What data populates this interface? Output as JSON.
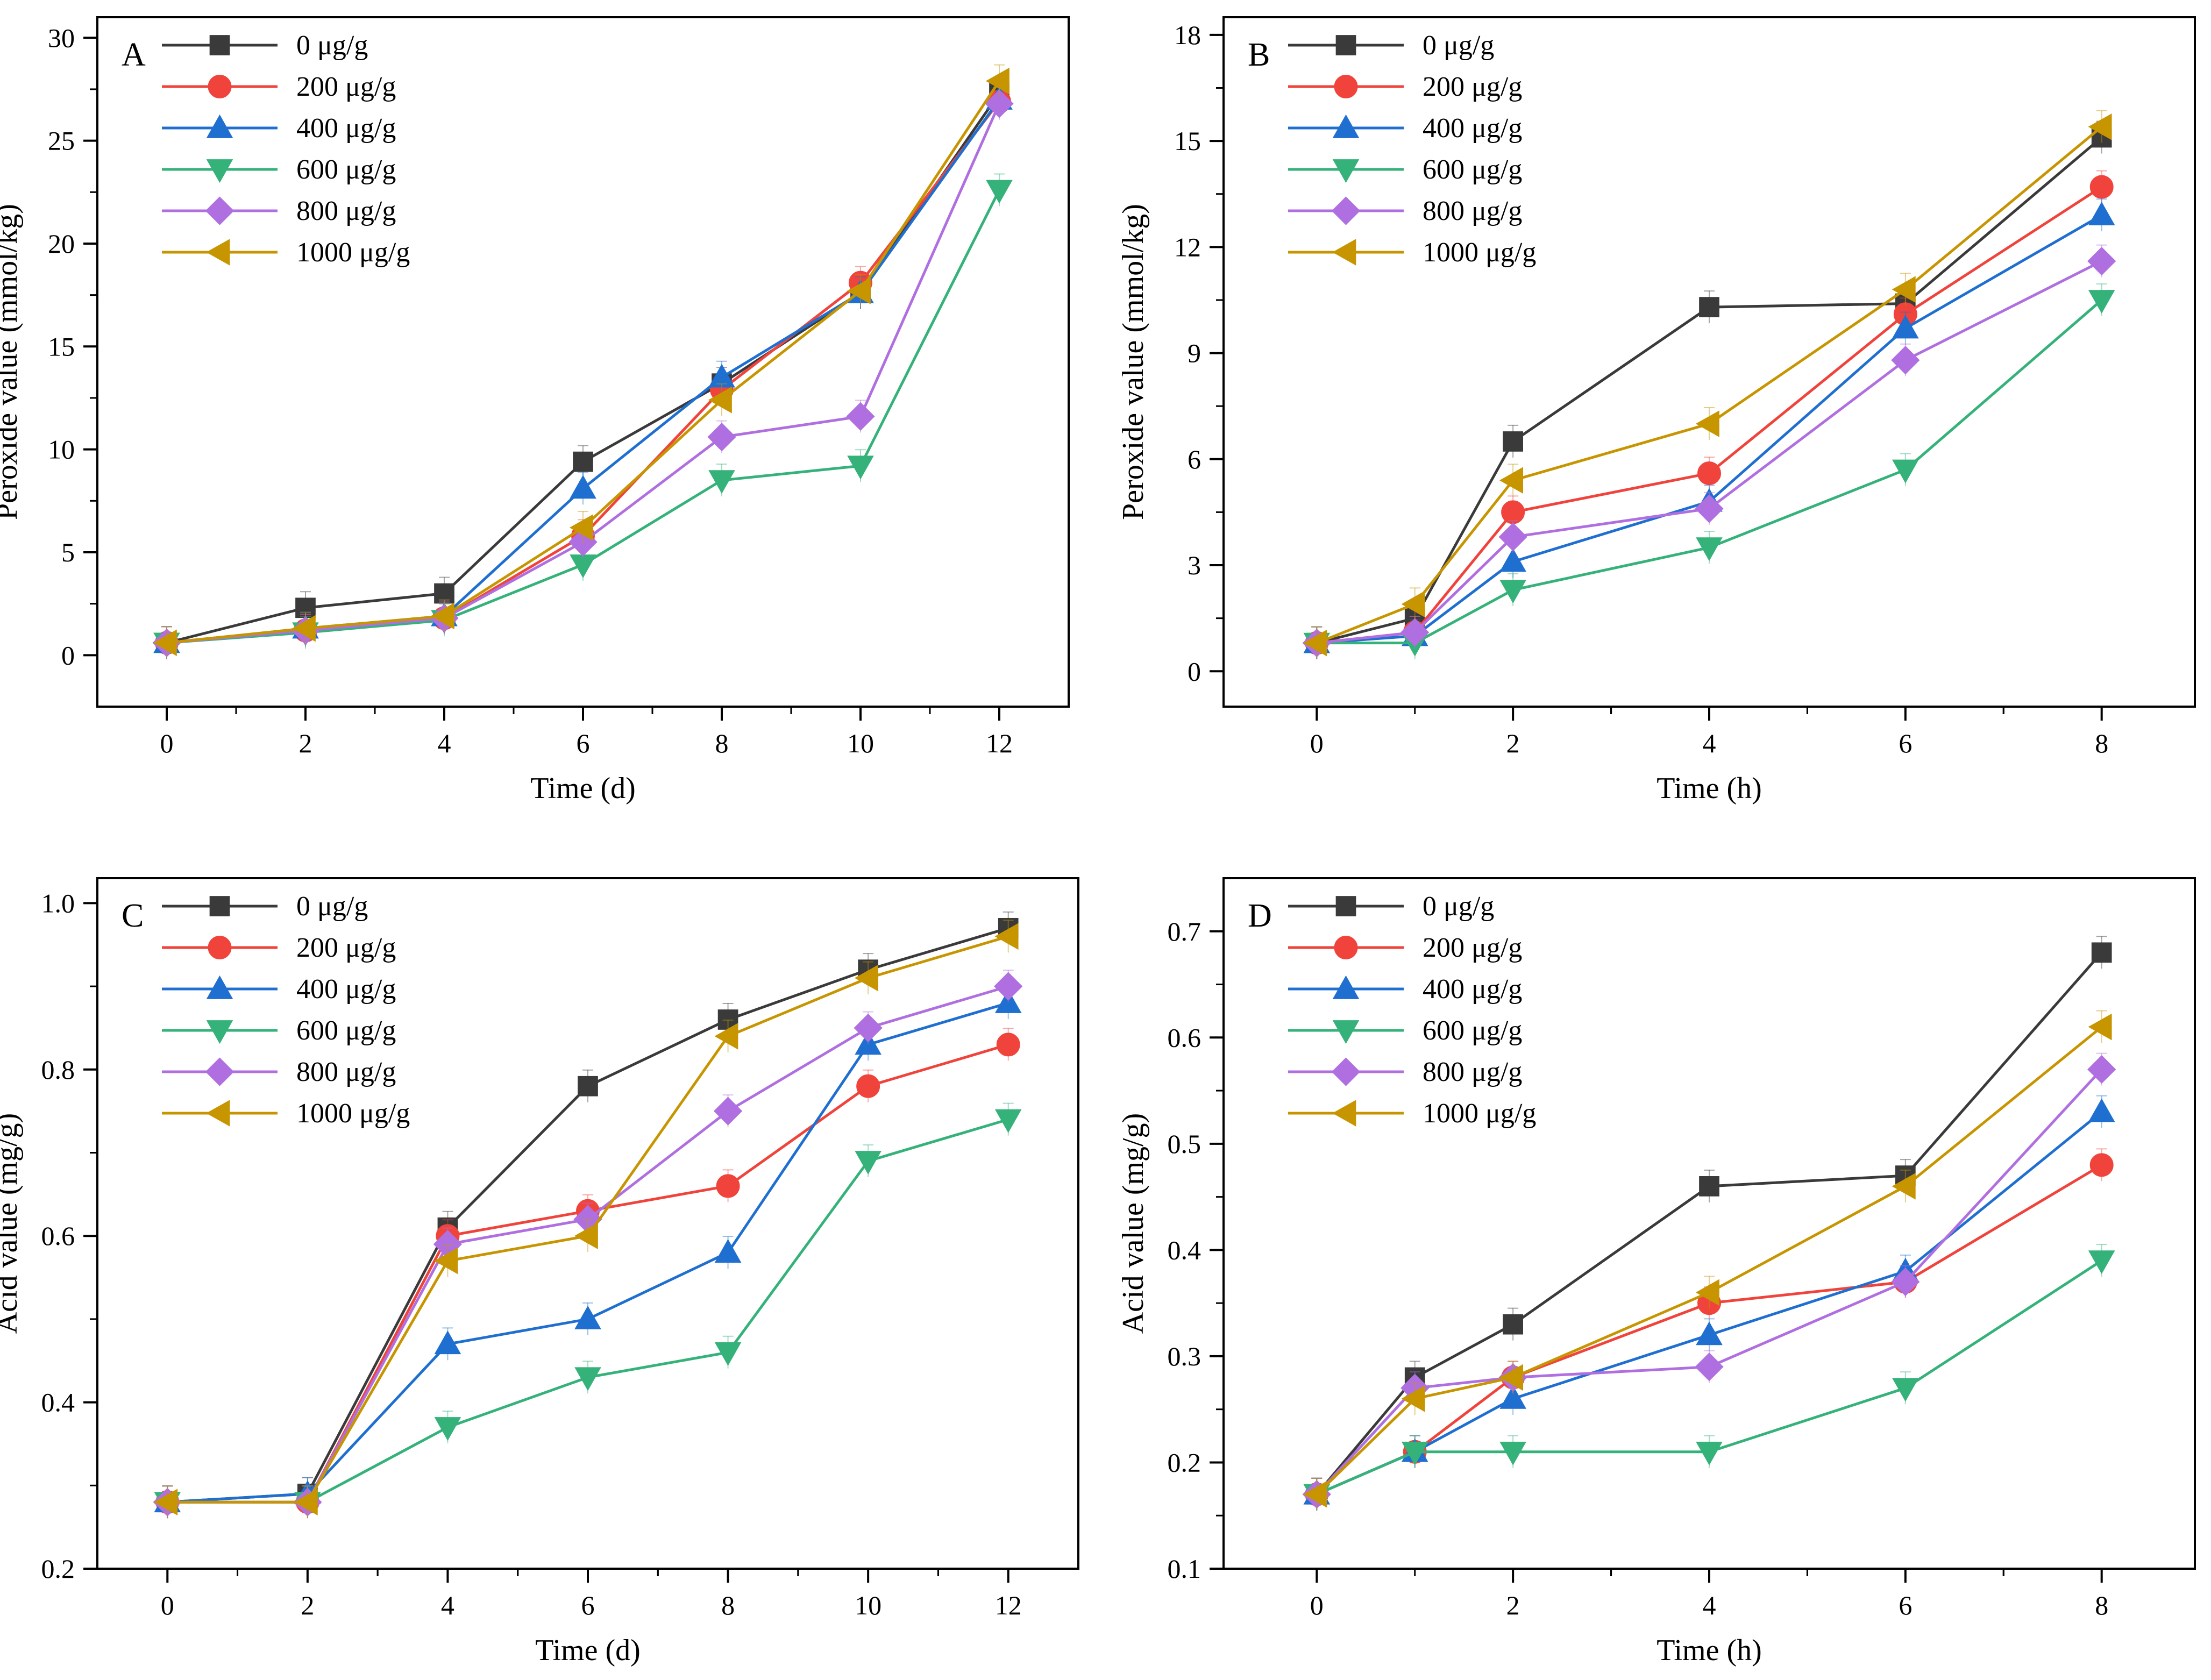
{
  "chart_data": [
    {
      "panel_label": "A",
      "type": "line",
      "xlabel": "Time (d)",
      "ylabel": "Peroxide value (mmol/kg)",
      "xlim": [
        -1,
        13
      ],
      "ylim": [
        -2.5,
        31
      ],
      "x_ticks": [
        "0",
        "2",
        "4",
        "6",
        "8",
        "10",
        "12"
      ],
      "y_ticks": [
        "0",
        "5",
        "10",
        "15",
        "20",
        "25",
        "30"
      ],
      "x": [
        0,
        2,
        4,
        6,
        8,
        10,
        12
      ],
      "legend_position": "top-left",
      "series": [
        {
          "name": "0 μg/g",
          "values": [
            0.6,
            2.3,
            3.0,
            9.4,
            13.2,
            17.6,
            27.3
          ]
        },
        {
          "name": "200 μg/g",
          "values": [
            0.6,
            1.2,
            1.8,
            5.8,
            12.9,
            18.1,
            26.9
          ]
        },
        {
          "name": "400 μg/g",
          "values": [
            0.6,
            1.3,
            1.9,
            8.1,
            13.5,
            17.6,
            27.0
          ]
        },
        {
          "name": "600 μg/g",
          "values": [
            0.6,
            1.1,
            1.7,
            4.4,
            8.5,
            9.2,
            22.6
          ]
        },
        {
          "name": "800 μg/g",
          "values": [
            0.6,
            1.2,
            1.8,
            5.5,
            10.6,
            11.6,
            26.8
          ]
        },
        {
          "name": "1000 μg/g",
          "values": [
            0.6,
            1.3,
            1.9,
            6.2,
            12.4,
            17.7,
            27.9
          ]
        }
      ]
    },
    {
      "panel_label": "B",
      "type": "line",
      "xlabel": "Time (h)",
      "ylabel": "Peroxide value (mmol/kg)",
      "xlim": [
        -0.95,
        8.95
      ],
      "ylim": [
        -1,
        18.5
      ],
      "x_ticks": [
        "0",
        "2",
        "4",
        "6",
        "8"
      ],
      "y_ticks": [
        "0",
        "3",
        "6",
        "9",
        "12",
        "15",
        "18"
      ],
      "x": [
        0,
        1,
        2,
        4,
        6,
        8
      ],
      "legend_position": "top-left",
      "series": [
        {
          "name": "0 μg/g",
          "values": [
            0.8,
            1.5,
            6.5,
            10.3,
            10.4,
            15.1
          ]
        },
        {
          "name": "200 μg/g",
          "values": [
            0.8,
            1.1,
            4.5,
            5.6,
            10.1,
            13.7
          ]
        },
        {
          "name": "400 μg/g",
          "values": [
            0.8,
            1.0,
            3.1,
            4.8,
            9.7,
            12.9
          ]
        },
        {
          "name": "600 μg/g",
          "values": [
            0.8,
            0.8,
            2.3,
            3.5,
            5.7,
            10.5
          ]
        },
        {
          "name": "800 μg/g",
          "values": [
            0.8,
            1.1,
            3.8,
            4.6,
            8.8,
            11.6
          ]
        },
        {
          "name": "1000 μg/g",
          "values": [
            0.8,
            1.9,
            5.4,
            7.0,
            10.8,
            15.4
          ]
        }
      ]
    },
    {
      "panel_label": "C",
      "type": "line",
      "xlabel": "Time (d)",
      "ylabel": "Acid value (mg/g)",
      "xlim": [
        -1,
        13
      ],
      "ylim": [
        0.2,
        1.03
      ],
      "x_ticks": [
        "0",
        "2",
        "4",
        "6",
        "8",
        "10",
        "12"
      ],
      "y_ticks": [
        "0.2",
        "0.4",
        "0.6",
        "0.8",
        "1.0"
      ],
      "x": [
        0,
        2,
        4,
        6,
        8,
        10,
        12
      ],
      "legend_position": "top-left",
      "series": [
        {
          "name": "0 μg/g",
          "values": [
            0.28,
            0.29,
            0.61,
            0.78,
            0.86,
            0.92,
            0.97
          ]
        },
        {
          "name": "200 μg/g",
          "values": [
            0.28,
            0.28,
            0.6,
            0.63,
            0.66,
            0.78,
            0.83
          ]
        },
        {
          "name": "400 μg/g",
          "values": [
            0.28,
            0.29,
            0.47,
            0.5,
            0.58,
            0.83,
            0.88
          ]
        },
        {
          "name": "600 μg/g",
          "values": [
            0.28,
            0.28,
            0.37,
            0.43,
            0.46,
            0.69,
            0.74
          ]
        },
        {
          "name": "800 μg/g",
          "values": [
            0.28,
            0.28,
            0.59,
            0.62,
            0.75,
            0.85,
            0.9
          ]
        },
        {
          "name": "1000 μg/g",
          "values": [
            0.28,
            0.28,
            0.57,
            0.6,
            0.84,
            0.91,
            0.96
          ]
        }
      ]
    },
    {
      "panel_label": "D",
      "type": "line",
      "xlabel": "Time (h)",
      "ylabel": "Acid value (mg/g)",
      "xlim": [
        -0.95,
        8.95
      ],
      "ylim": [
        0.1,
        0.75
      ],
      "x_ticks": [
        "0",
        "2",
        "4",
        "6",
        "8"
      ],
      "y_ticks": [
        "0.1",
        "0.2",
        "0.3",
        "0.4",
        "0.5",
        "0.6",
        "0.7"
      ],
      "x": [
        0,
        1,
        2,
        4,
        6,
        8
      ],
      "legend_position": "top-left",
      "series": [
        {
          "name": "0 μg/g",
          "values": [
            0.17,
            0.28,
            0.33,
            0.46,
            0.47,
            0.68
          ]
        },
        {
          "name": "200 μg/g",
          "values": [
            0.17,
            0.21,
            0.28,
            0.35,
            0.37,
            0.48
          ]
        },
        {
          "name": "400 μg/g",
          "values": [
            0.17,
            0.21,
            0.26,
            0.32,
            0.38,
            0.53
          ]
        },
        {
          "name": "600 μg/g",
          "values": [
            0.17,
            0.21,
            0.21,
            0.21,
            0.27,
            0.39
          ]
        },
        {
          "name": "800 μg/g",
          "values": [
            0.17,
            0.27,
            0.28,
            0.29,
            0.37,
            0.57
          ]
        },
        {
          "name": "1000 μg/g",
          "values": [
            0.17,
            0.26,
            0.28,
            0.36,
            0.46,
            0.61
          ]
        }
      ]
    }
  ],
  "styles": {
    "series_colors": [
      "#3a3a3a",
      "#f0433b",
      "#1f6fd1",
      "#35b27a",
      "#b06fe0",
      "#c79500"
    ],
    "series_markers": [
      "square",
      "circle",
      "triangle-up",
      "triangle-down",
      "diamond",
      "triangle-left"
    ]
  }
}
